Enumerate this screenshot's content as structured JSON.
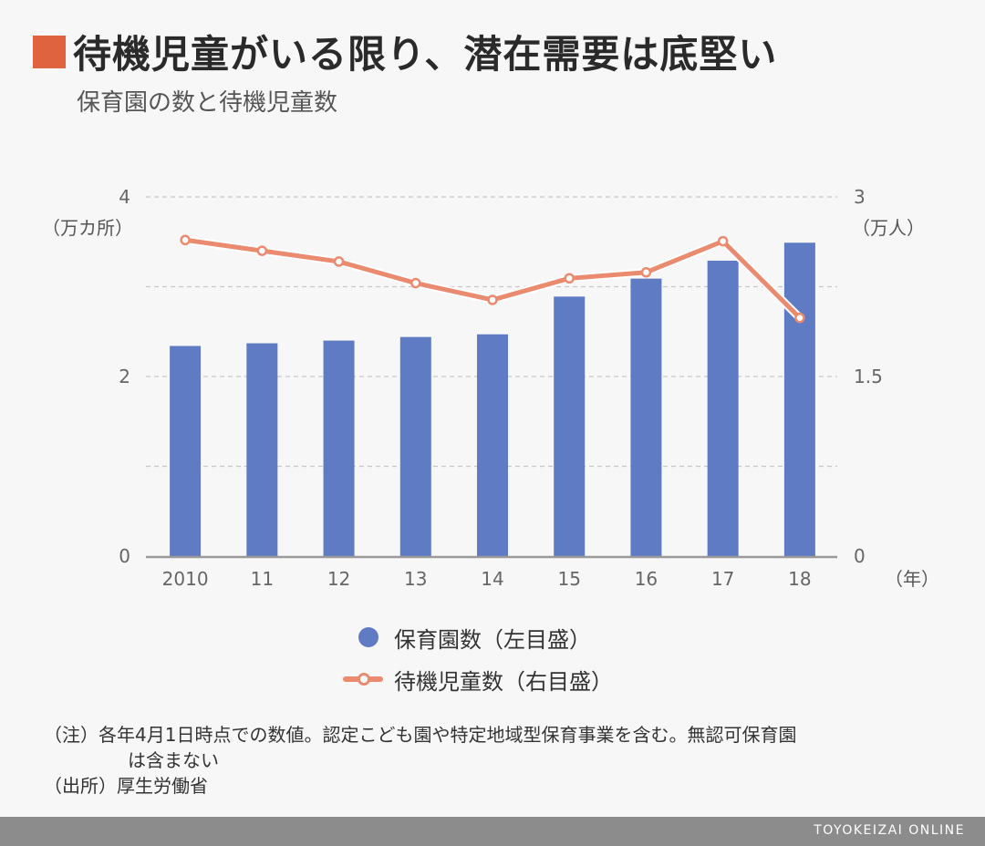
{
  "header": {
    "title": "待機児童がいる限り、潜在需要は底堅い",
    "subtitle": "保育園の数と待機児童数",
    "accent_color": "#e0633f"
  },
  "chart_data": {
    "type": "bar",
    "categories": [
      "2010",
      "11",
      "12",
      "13",
      "14",
      "15",
      "16",
      "17",
      "18"
    ],
    "series": [
      {
        "name": "保育園数（左目盛）",
        "type": "bar",
        "axis": "left",
        "color": "#5f7bc4",
        "values": [
          2.34,
          2.37,
          2.4,
          2.44,
          2.47,
          2.89,
          3.09,
          3.29,
          3.49
        ]
      },
      {
        "name": "待機児童数（右目盛）",
        "type": "line",
        "axis": "right",
        "color": "#ea8a6e",
        "values": [
          2.64,
          2.55,
          2.46,
          2.28,
          2.14,
          2.32,
          2.37,
          2.63,
          1.99
        ]
      }
    ],
    "y_left": {
      "min": 0,
      "max": 4,
      "ticks": [
        "0",
        "2",
        "4"
      ],
      "unit": "（万カ所）"
    },
    "y_right": {
      "min": 0,
      "max": 3,
      "ticks": [
        "0",
        "1.5",
        "3"
      ],
      "unit": "（万人）"
    },
    "x_unit": "（年）",
    "grid": "dashed"
  },
  "notes": {
    "note_line1": "（注）各年4月1日時点での数値。認定こども園や特定地域型保育事業を含む。無認可保育園",
    "note_line2": "は含まない",
    "source": "（出所）厚生労働省"
  },
  "footer": {
    "brand": "TOYOKEIZAI ONLINE"
  }
}
